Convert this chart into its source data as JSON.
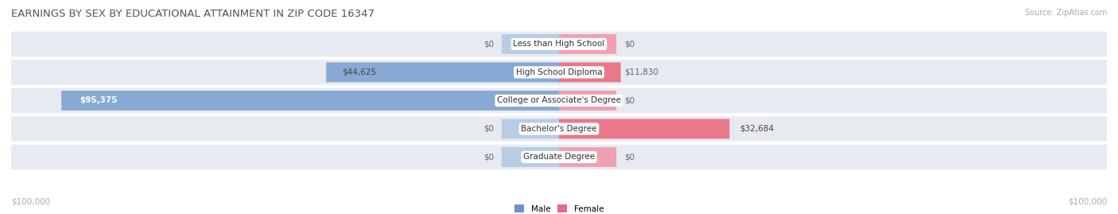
{
  "title": "EARNINGS BY SEX BY EDUCATIONAL ATTAINMENT IN ZIP CODE 16347",
  "source": "Source: ZipAtlas.com",
  "categories": [
    "Less than High School",
    "High School Diploma",
    "College or Associate's Degree",
    "Bachelor's Degree",
    "Graduate Degree"
  ],
  "male_values": [
    0,
    44625,
    95375,
    0,
    0
  ],
  "female_values": [
    0,
    11830,
    0,
    32684,
    0
  ],
  "max_value": 100000,
  "male_color": "#87a9d4",
  "female_color": "#e8788a",
  "male_color_dark": "#6090c8",
  "female_color_light": "#f0a0b0",
  "male_color_legend": "#7090c8",
  "female_color_legend": "#e8688a",
  "row_bg_color": "#e8eaf2",
  "row_gap_color": "#f4f5f8",
  "title_fontsize": 9.5,
  "source_fontsize": 7,
  "label_fontsize": 7.5,
  "category_fontsize": 7.5,
  "axis_label_fontsize": 7.5,
  "background_color": "#ffffff",
  "xlabel_left": "$100,000",
  "xlabel_right": "$100,000",
  "zero_bar_width": 11000,
  "zero_bar_male_color": "#b8cce4",
  "zero_bar_female_color": "#f4b8c8"
}
